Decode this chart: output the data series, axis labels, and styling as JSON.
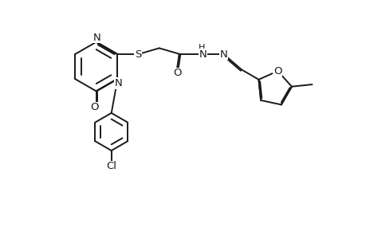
{
  "bg_color": "#ffffff",
  "line_color": "#1a1a1a",
  "line_width": 1.4,
  "font_size": 9.5,
  "fig_width": 4.6,
  "fig_height": 3.0,
  "dpi": 100,
  "xlim": [
    0,
    9.2
  ],
  "ylim": [
    -3.2,
    3.8
  ]
}
